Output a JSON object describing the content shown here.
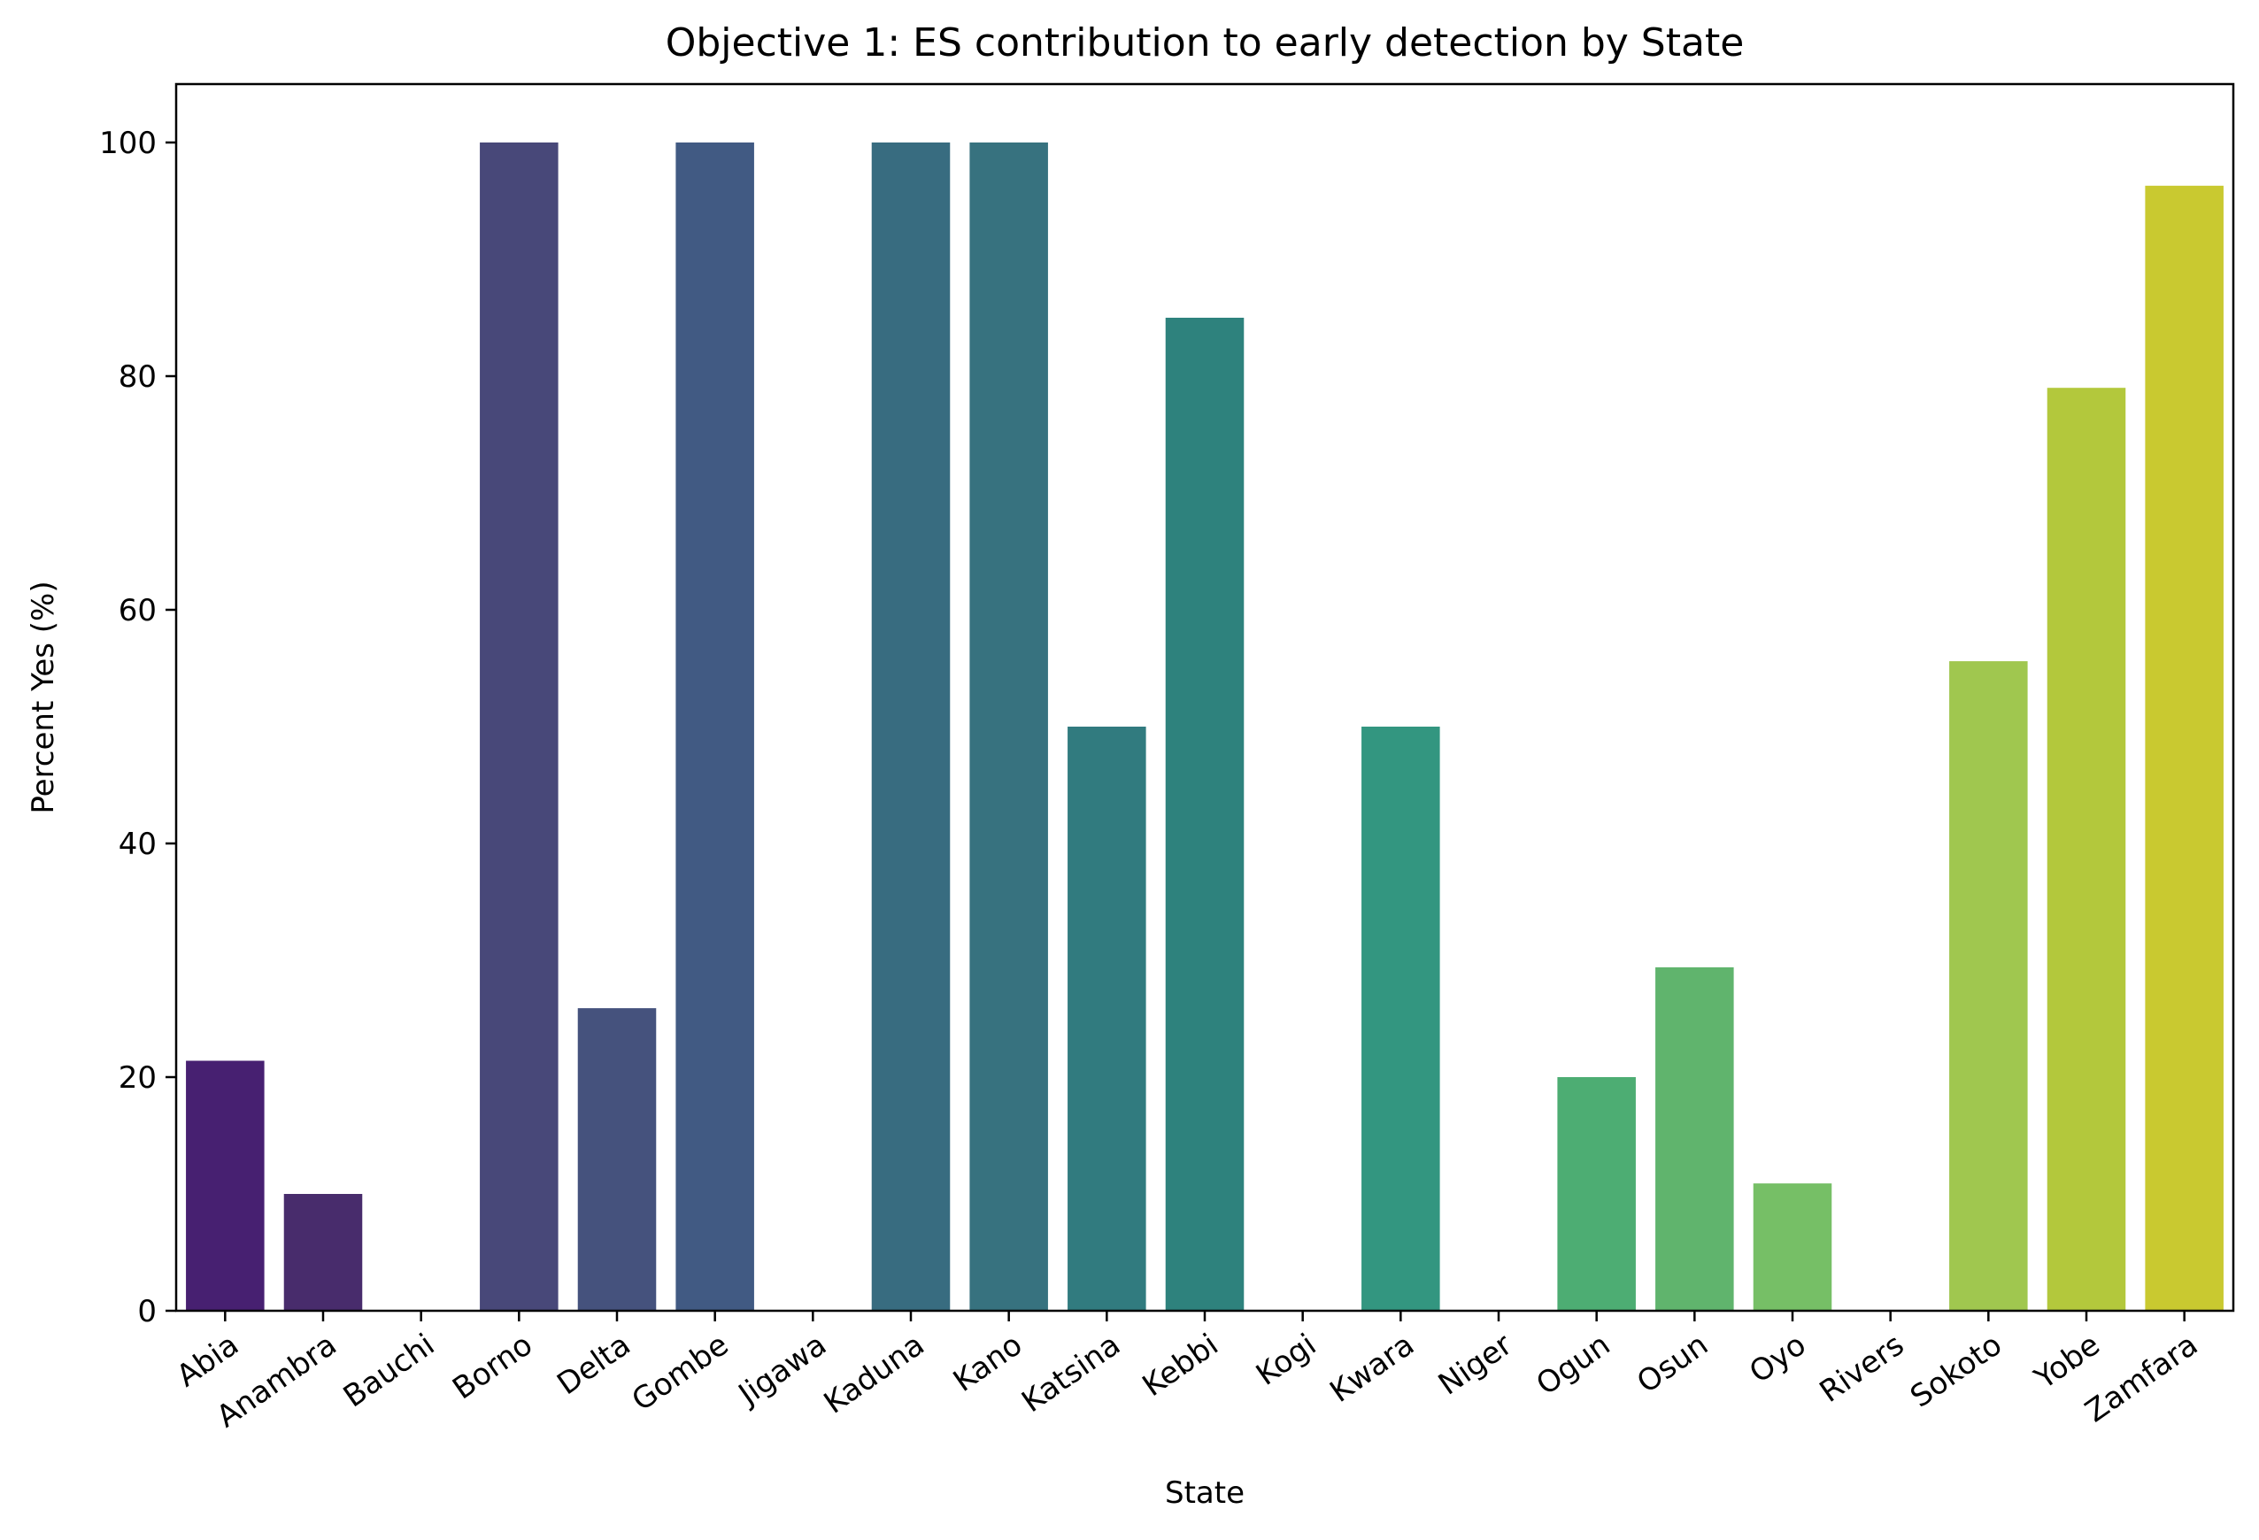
{
  "chart_data": {
    "type": "bar",
    "title": "Objective 1: ES contribution to early detection by State",
    "xlabel": "State",
    "ylabel": "Percent Yes (%)",
    "ylim": [
      0,
      105
    ],
    "yticks": [
      0,
      20,
      40,
      60,
      80,
      100
    ],
    "grid": false,
    "categories": [
      "Abia",
      "Anambra",
      "Bauchi",
      "Borno",
      "Delta",
      "Gombe",
      "Jigawa",
      "Kaduna",
      "Kano",
      "Katsina",
      "Kebbi",
      "Kogi",
      "Kwara",
      "Niger",
      "Ogun",
      "Osun",
      "Oyo",
      "Rivers",
      "Sokoto",
      "Yobe",
      "Zamfara"
    ],
    "values": [
      21.4,
      10.0,
      0,
      100.0,
      25.9,
      100.0,
      0,
      100.0,
      100.0,
      50.0,
      85.0,
      0,
      50.0,
      0,
      20.0,
      29.4,
      10.9,
      0,
      55.6,
      79.0,
      96.3
    ],
    "colors": [
      "#472071",
      "#482C6C",
      "#4A3975",
      "#484879",
      "#45527D",
      "#415A83",
      "#3D6582",
      "#386C80",
      "#37727F",
      "#317B7F",
      "#2E827D",
      "#2B8C7E",
      "#339680",
      "#3BA17B",
      "#4DAD73",
      "#60B46D",
      "#76BF66",
      "#8FC55C",
      "#A0C74F",
      "#B3C83C",
      "#C9C930"
    ]
  }
}
